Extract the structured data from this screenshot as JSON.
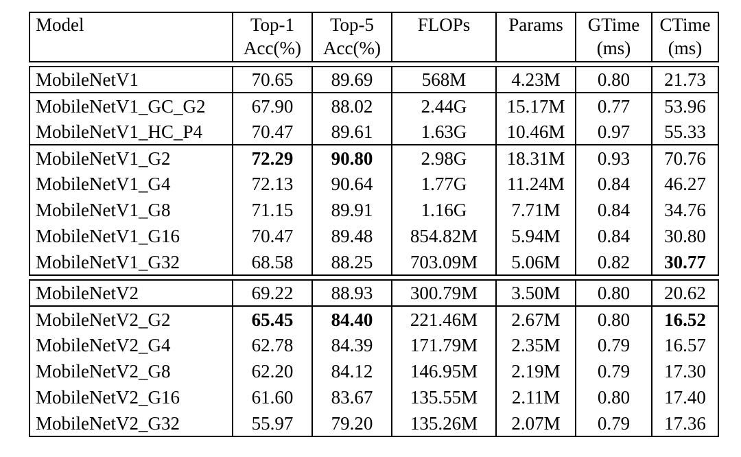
{
  "page": {
    "background_color": "#ffffff",
    "text_color": "#000000",
    "rule_color": "#000000"
  },
  "table": {
    "columns": [
      {
        "key": "model",
        "line1": "Model",
        "line2": "",
        "align": "left"
      },
      {
        "key": "top1",
        "line1": "Top-1",
        "line2": "Acc(%)",
        "align": "center"
      },
      {
        "key": "top5",
        "line1": "Top-5",
        "line2": "Acc(%)",
        "align": "center"
      },
      {
        "key": "flops",
        "line1": "FLOPs",
        "line2": "",
        "align": "center"
      },
      {
        "key": "params",
        "line1": "Params",
        "line2": "",
        "align": "center"
      },
      {
        "key": "gtime",
        "line1": "GTime",
        "line2": "(ms)",
        "align": "center"
      },
      {
        "key": "ctime",
        "line1": "CTime",
        "line2": "(ms)",
        "align": "center"
      }
    ],
    "groups": [
      {
        "name": "mobilenet-v1-block",
        "rows": [
          {
            "model": "MobileNetV1",
            "top1": "70.65",
            "top5": "89.69",
            "flops": "568M",
            "params": "4.23M",
            "gtime": "0.80",
            "ctime": "21.73",
            "bold": [],
            "rule_after": true
          },
          {
            "model": "MobileNetV1_GC_G2",
            "top1": "67.90",
            "top5": "88.02",
            "flops": "2.44G",
            "params": "15.17M",
            "gtime": "0.77",
            "ctime": "53.96",
            "bold": [],
            "rule_after": false
          },
          {
            "model": "MobileNetV1_HC_P4",
            "top1": "70.47",
            "top5": "89.61",
            "flops": "1.63G",
            "params": "10.46M",
            "gtime": "0.97",
            "ctime": "55.33",
            "bold": [],
            "rule_after": true
          },
          {
            "model": "MobileNetV1_G2",
            "top1": "72.29",
            "top5": "90.80",
            "flops": "2.98G",
            "params": "18.31M",
            "gtime": "0.93",
            "ctime": "70.76",
            "bold": [
              "top1",
              "top5"
            ],
            "rule_after": false
          },
          {
            "model": "MobileNetV1_G4",
            "top1": "72.13",
            "top5": "90.64",
            "flops": "1.77G",
            "params": "11.24M",
            "gtime": "0.84",
            "ctime": "46.27",
            "bold": [],
            "rule_after": false
          },
          {
            "model": "MobileNetV1_G8",
            "top1": "71.15",
            "top5": "89.91",
            "flops": "1.16G",
            "params": "7.71M",
            "gtime": "0.84",
            "ctime": "34.76",
            "bold": [],
            "rule_after": false
          },
          {
            "model": "MobileNetV1_G16",
            "top1": "70.47",
            "top5": "89.48",
            "flops": "854.82M",
            "params": "5.94M",
            "gtime": "0.84",
            "ctime": "30.80",
            "bold": [],
            "rule_after": false
          },
          {
            "model": "MobileNetV1_G32",
            "top1": "68.58",
            "top5": "88.25",
            "flops": "703.09M",
            "params": "5.06M",
            "gtime": "0.82",
            "ctime": "30.77",
            "bold": [
              "ctime"
            ],
            "rule_after": false
          }
        ]
      },
      {
        "name": "mobilenet-v2-block",
        "rows": [
          {
            "model": "MobileNetV2",
            "top1": "69.22",
            "top5": "88.93",
            "flops": "300.79M",
            "params": "3.50M",
            "gtime": "0.80",
            "ctime": "20.62",
            "bold": [],
            "rule_after": true
          },
          {
            "model": "MobileNetV2_G2",
            "top1": "65.45",
            "top5": "84.40",
            "flops": "221.46M",
            "params": "2.67M",
            "gtime": "0.80",
            "ctime": "16.52",
            "bold": [
              "top1",
              "top5",
              "ctime"
            ],
            "rule_after": false
          },
          {
            "model": "MobileNetV2_G4",
            "top1": "62.78",
            "top5": "84.39",
            "flops": "171.79M",
            "params": "2.35M",
            "gtime": "0.79",
            "ctime": "16.57",
            "bold": [],
            "rule_after": false
          },
          {
            "model": "MobileNetV2_G8",
            "top1": "62.20",
            "top5": "84.12",
            "flops": "146.95M",
            "params": "2.19M",
            "gtime": "0.79",
            "ctime": "17.30",
            "bold": [],
            "rule_after": false
          },
          {
            "model": "MobileNetV2_G16",
            "top1": "61.60",
            "top5": "83.67",
            "flops": "135.55M",
            "params": "2.11M",
            "gtime": "0.80",
            "ctime": "17.40",
            "bold": [],
            "rule_after": false
          },
          {
            "model": "MobileNetV2_G32",
            "top1": "55.97",
            "top5": "79.20",
            "flops": "135.26M",
            "params": "2.07M",
            "gtime": "0.79",
            "ctime": "17.36",
            "bold": [],
            "rule_after": false
          }
        ]
      }
    ]
  }
}
